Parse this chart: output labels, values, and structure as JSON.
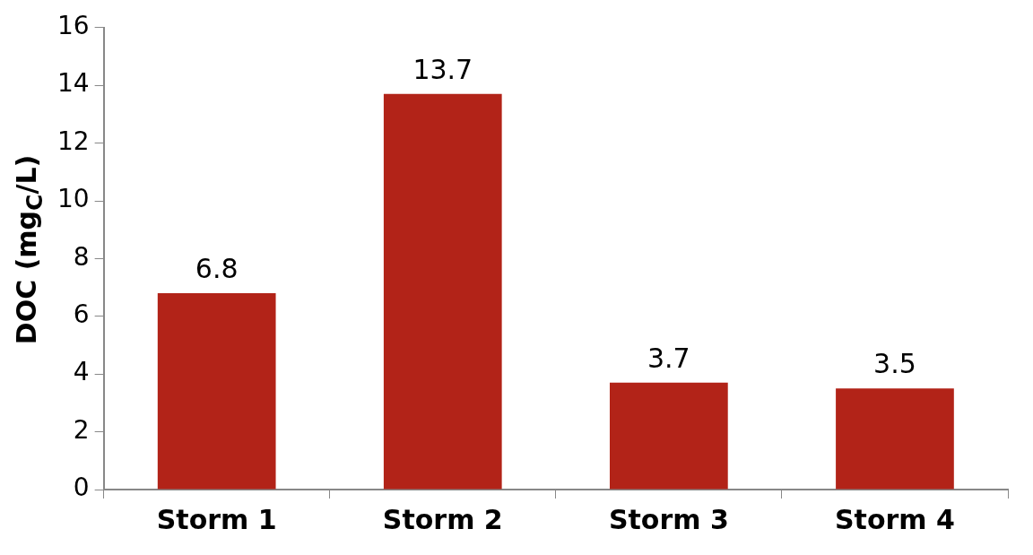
{
  "chart_data": {
    "type": "bar",
    "ylabel": "DOC (mg$_{C}$/L)",
    "categories": [
      "Storm 1",
      "Storm 2",
      "Storm 3",
      "Storm 4"
    ],
    "values": [
      6.8,
      13.7,
      3.7,
      3.5
    ],
    "color": "#b22318",
    "ylim": [
      0,
      16
    ],
    "yticks": [
      0,
      2,
      4,
      6,
      8,
      10,
      12,
      14,
      16
    ],
    "grid": false,
    "legend": false,
    "data_labels": true
  }
}
